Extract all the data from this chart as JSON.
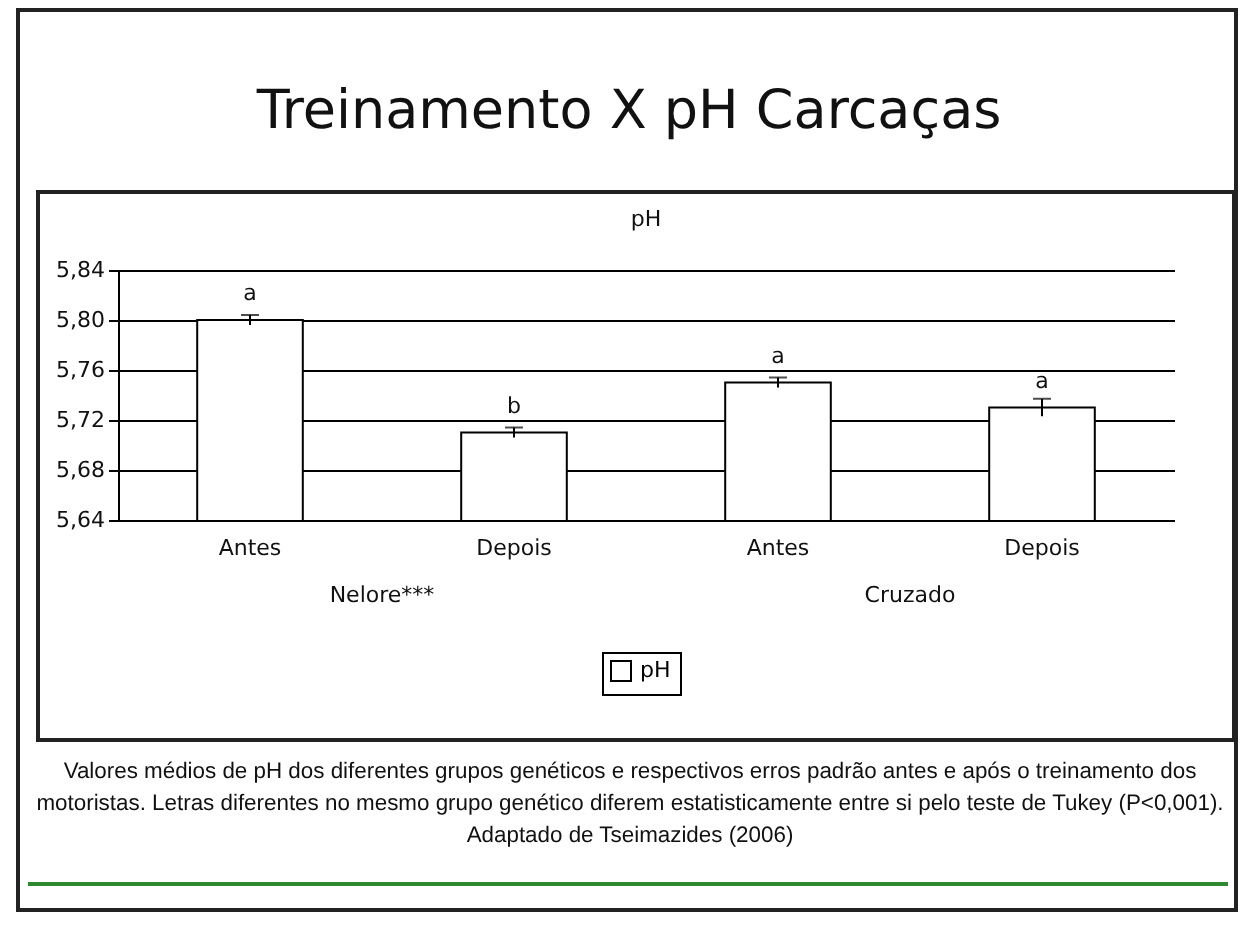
{
  "chart_data": {
    "type": "bar",
    "title": "Treinamento X pH Carcaças",
    "subtitle": "pH",
    "categories": [
      "Antes",
      "Depois",
      "Antes",
      "Depois"
    ],
    "series": [
      {
        "name": "pH",
        "color": "#ffffff",
        "values": [
          5.8,
          5.71,
          5.75,
          5.73
        ],
        "errors": [
          0.004,
          0.004,
          0.004,
          0.007
        ],
        "value_labels": [
          "a",
          "b",
          "a",
          "a"
        ]
      }
    ],
    "ylim": [
      5.64,
      5.84
    ],
    "yticks": [
      {
        "value": 5.64,
        "label": "5,64"
      },
      {
        "value": 5.68,
        "label": "5,68"
      },
      {
        "value": 5.72,
        "label": "5,72"
      },
      {
        "value": 5.76,
        "label": "5,76"
      },
      {
        "value": 5.8,
        "label": "5,80"
      },
      {
        "value": 5.84,
        "label": "5,84"
      }
    ],
    "grid": "y",
    "legend": "bottom",
    "annotations": [
      "Nelore***",
      "Cruzado",
      "Valores médios de pH dos diferentes grupos genéticos e respectivos erros padrão antes e após o treinamento dos motoristas. Letras diferentes no mesmo grupo genético diferem estatisticamente entre si pelo teste de Tukey (P<0,001). Adaptado de Tseimazides (2006)"
    ]
  }
}
